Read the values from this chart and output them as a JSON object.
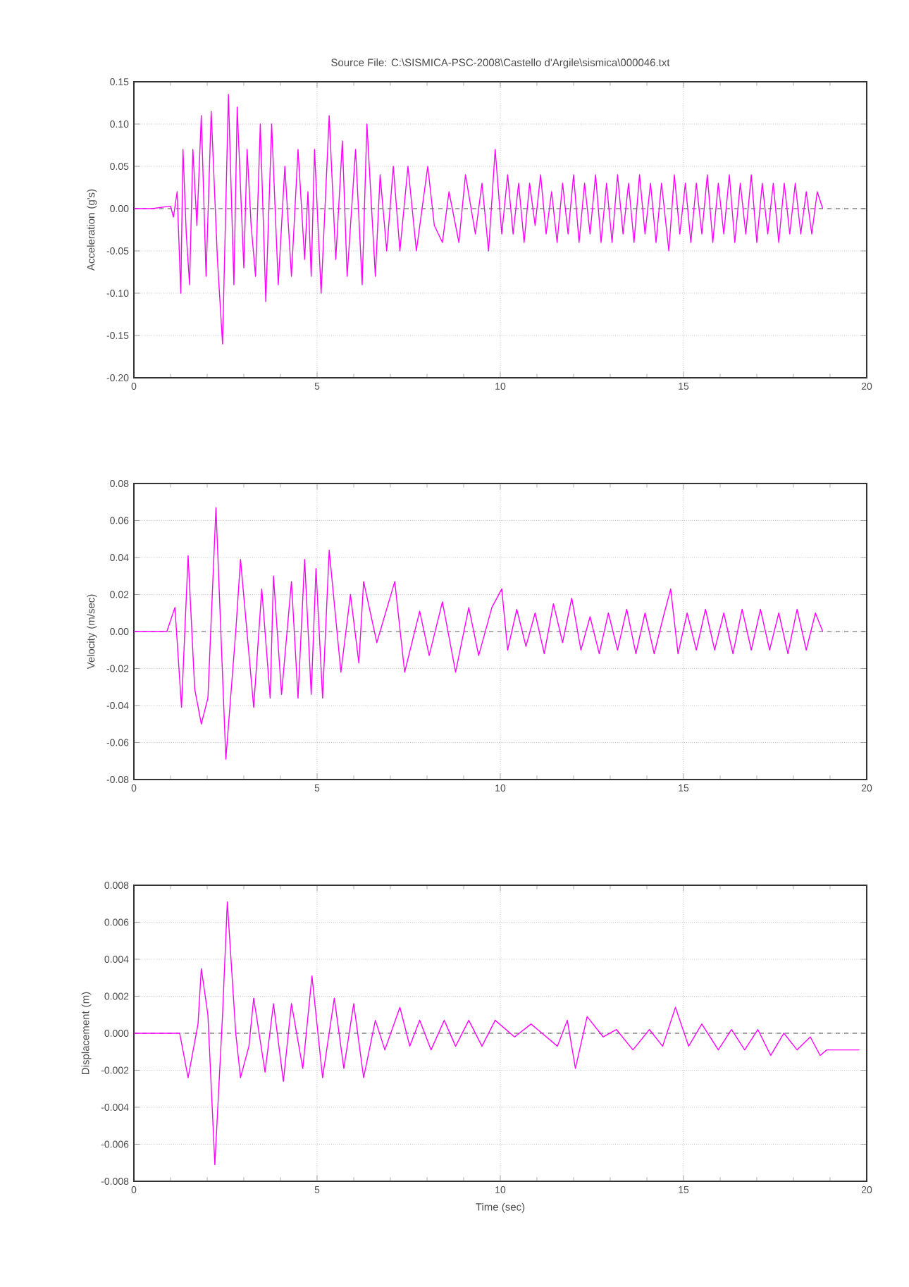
{
  "chart_data": [
    {
      "type": "line",
      "title": "Source File: C:\\SISMICA-PSC-2008\\Castello d'Argile\\sismica\\000046.txt",
      "ylabel": "Acceleration (g's)",
      "xlim": [
        0,
        20
      ],
      "xticks": [
        {
          "value": 0,
          "label": "0"
        },
        {
          "value": 5,
          "label": "5"
        },
        {
          "value": 10,
          "label": "10"
        },
        {
          "value": 15,
          "label": "15"
        },
        {
          "value": 20,
          "label": "20"
        }
      ],
      "ylim": [
        -0.2,
        0.15
      ],
      "yticks": [
        {
          "value": 0.15,
          "label": "0.15"
        },
        {
          "value": 0.1,
          "label": "0.10"
        },
        {
          "value": 0.05,
          "label": "0.05"
        },
        {
          "value": 0,
          "label": "0.00"
        },
        {
          "value": -0.05,
          "label": "-0.05"
        },
        {
          "value": -0.1,
          "label": "-0.10"
        },
        {
          "value": -0.15,
          "label": "-0.15"
        },
        {
          "value": -0.2,
          "label": "-0.20"
        }
      ],
      "grid": true,
      "ref_lines": [
        {
          "axis": "y",
          "value": 0,
          "color": "#505050",
          "line_style": "dashed"
        }
      ],
      "series": [
        {
          "color": "#ff00ff",
          "x": [
            0,
            0.5,
            1.0,
            1.08,
            1.18,
            1.28,
            1.34,
            1.43,
            1.52,
            1.61,
            1.72,
            1.84,
            1.97,
            2.11,
            2.28,
            2.42,
            2.58,
            2.73,
            2.82,
            3.0,
            3.09,
            3.2,
            3.32,
            3.45,
            3.6,
            3.76,
            3.94,
            4.12,
            4.3,
            4.48,
            4.66,
            4.75,
            4.84,
            4.93,
            5.11,
            5.33,
            5.51,
            5.69,
            5.82,
            6.05,
            6.23,
            6.36,
            6.59,
            6.72,
            6.9,
            7.08,
            7.26,
            7.48,
            7.71,
            8.02,
            8.2,
            8.42,
            8.6,
            8.87,
            9.05,
            9.32,
            9.5,
            9.68,
            9.86,
            10.04,
            10.2,
            10.35,
            10.5,
            10.65,
            10.8,
            10.95,
            11.1,
            11.25,
            11.4,
            11.55,
            11.7,
            11.85,
            12.0,
            12.15,
            12.3,
            12.45,
            12.6,
            12.75,
            12.9,
            13.05,
            13.2,
            13.35,
            13.5,
            13.65,
            13.8,
            13.95,
            14.1,
            14.25,
            14.4,
            14.6,
            14.75,
            14.9,
            15.05,
            15.2,
            15.35,
            15.5,
            15.65,
            15.8,
            15.95,
            16.1,
            16.25,
            16.4,
            16.55,
            16.7,
            16.85,
            17.0,
            17.15,
            17.3,
            17.45,
            17.6,
            17.75,
            17.9,
            18.05,
            18.2,
            18.35,
            18.5,
            18.65,
            18.8
          ],
          "values": [
            0,
            0,
            0.003,
            -0.01,
            0.02,
            -0.1,
            0.07,
            -0.03,
            -0.09,
            0.07,
            -0.02,
            0.11,
            -0.08,
            0.115,
            -0.06,
            -0.16,
            0.135,
            -0.09,
            0.12,
            -0.07,
            0.07,
            -0.02,
            -0.08,
            0.1,
            -0.11,
            0.1,
            -0.09,
            0.05,
            -0.08,
            0.07,
            -0.06,
            0.02,
            -0.08,
            0.07,
            -0.1,
            0.11,
            -0.06,
            0.08,
            -0.08,
            0.07,
            -0.09,
            0.1,
            -0.08,
            0.04,
            -0.05,
            0.05,
            -0.05,
            0.05,
            -0.05,
            0.05,
            -0.02,
            -0.04,
            0.02,
            -0.04,
            0.04,
            -0.03,
            0.03,
            -0.05,
            0.07,
            -0.03,
            0.04,
            -0.03,
            0.03,
            -0.04,
            0.03,
            -0.02,
            0.04,
            -0.03,
            0.02,
            -0.04,
            0.03,
            -0.03,
            0.04,
            -0.04,
            0.03,
            -0.03,
            0.04,
            -0.04,
            0.03,
            -0.04,
            0.04,
            -0.03,
            0.03,
            -0.04,
            0.04,
            -0.03,
            0.03,
            -0.04,
            0.03,
            -0.05,
            0.04,
            -0.03,
            0.03,
            -0.04,
            0.03,
            -0.03,
            0.04,
            -0.04,
            0.03,
            -0.03,
            0.04,
            -0.04,
            0.03,
            -0.03,
            0.04,
            -0.04,
            0.03,
            -0.03,
            0.03,
            -0.04,
            0.03,
            -0.03,
            0.03,
            -0.03,
            0.02,
            -0.03,
            0.02,
            0
          ]
        }
      ]
    },
    {
      "type": "line",
      "ylabel": "Velocity (m/sec)",
      "xlim": [
        0,
        20
      ],
      "xticks": [
        {
          "value": 0,
          "label": "0"
        },
        {
          "value": 5,
          "label": "5"
        },
        {
          "value": 10,
          "label": "10"
        },
        {
          "value": 15,
          "label": "15"
        },
        {
          "value": 20,
          "label": "20"
        }
      ],
      "ylim": [
        -0.08,
        0.08
      ],
      "yticks": [
        {
          "value": 0.08,
          "label": "0.08"
        },
        {
          "value": 0.06,
          "label": "0.06"
        },
        {
          "value": 0.04,
          "label": "0.04"
        },
        {
          "value": 0.02,
          "label": "0.02"
        },
        {
          "value": 0,
          "label": "0.00"
        },
        {
          "value": -0.02,
          "label": "-0.02"
        },
        {
          "value": -0.04,
          "label": "-0.04"
        },
        {
          "value": -0.06,
          "label": "-0.06"
        },
        {
          "value": -0.08,
          "label": "-0.08"
        }
      ],
      "grid": true,
      "ref_lines": [
        {
          "axis": "y",
          "value": 0,
          "color": "#505050",
          "line_style": "dashed"
        }
      ],
      "series": [
        {
          "color": "#ff00ff",
          "x": [
            0,
            0.9,
            1.12,
            1.3,
            1.48,
            1.66,
            1.84,
            2.02,
            2.24,
            2.51,
            2.78,
            2.91,
            3.27,
            3.49,
            3.72,
            3.81,
            4.03,
            4.3,
            4.48,
            4.66,
            4.84,
            4.97,
            5.15,
            5.33,
            5.65,
            5.91,
            6.14,
            6.27,
            6.63,
            7.12,
            7.39,
            7.8,
            8.06,
            8.42,
            8.78,
            9.14,
            9.41,
            9.77,
            10.04,
            10.2,
            10.45,
            10.7,
            10.95,
            11.2,
            11.45,
            11.7,
            11.95,
            12.2,
            12.45,
            12.7,
            12.95,
            13.2,
            13.45,
            13.7,
            13.95,
            14.2,
            14.45,
            14.65,
            14.85,
            15.1,
            15.35,
            15.6,
            15.85,
            16.1,
            16.35,
            16.6,
            16.85,
            17.1,
            17.35,
            17.6,
            17.85,
            18.1,
            18.35,
            18.6,
            18.8
          ],
          "values": [
            0,
            0,
            0.013,
            -0.041,
            0.041,
            -0.031,
            -0.05,
            -0.036,
            0.067,
            -0.069,
            0,
            0.039,
            -0.041,
            0.023,
            -0.036,
            0.03,
            -0.034,
            0.027,
            -0.036,
            0.039,
            -0.034,
            0.034,
            -0.036,
            0.044,
            -0.022,
            0.02,
            -0.017,
            0.027,
            -0.006,
            0.027,
            -0.022,
            0.011,
            -0.013,
            0.016,
            -0.022,
            0.013,
            -0.013,
            0.013,
            0.023,
            -0.01,
            0.012,
            -0.008,
            0.01,
            -0.012,
            0.015,
            -0.006,
            0.018,
            -0.01,
            0.008,
            -0.012,
            0.01,
            -0.01,
            0.012,
            -0.012,
            0.01,
            -0.012,
            0.008,
            0.023,
            -0.012,
            0.01,
            -0.01,
            0.012,
            -0.01,
            0.01,
            -0.012,
            0.012,
            -0.01,
            0.012,
            -0.01,
            0.01,
            -0.012,
            0.012,
            -0.01,
            0.01,
            0
          ]
        }
      ]
    },
    {
      "type": "line",
      "ylabel": "Displacement (m)",
      "xlabel": "Time (sec)",
      "xlim": [
        0,
        20
      ],
      "xticks": [
        {
          "value": 0,
          "label": "0"
        },
        {
          "value": 5,
          "label": "5"
        },
        {
          "value": 10,
          "label": "10"
        },
        {
          "value": 15,
          "label": "15"
        },
        {
          "value": 20,
          "label": "20"
        }
      ],
      "ylim": [
        -0.008,
        0.008
      ],
      "yticks": [
        {
          "value": 0.008,
          "label": "0.008"
        },
        {
          "value": 0.006,
          "label": "0.006"
        },
        {
          "value": 0.004,
          "label": "0.004"
        },
        {
          "value": 0.002,
          "label": "0.002"
        },
        {
          "value": 0,
          "label": "0.000"
        },
        {
          "value": -0.002,
          "label": "-0.002"
        },
        {
          "value": -0.004,
          "label": "-0.004"
        },
        {
          "value": -0.006,
          "label": "-0.006"
        },
        {
          "value": -0.008,
          "label": "-0.008"
        }
      ],
      "grid": true,
      "ref_lines": [
        {
          "axis": "y",
          "value": 0,
          "color": "#505050",
          "line_style": "dashed"
        }
      ],
      "series": [
        {
          "color": "#ff00ff",
          "x": [
            0,
            1.25,
            1.48,
            1.75,
            1.84,
            2.02,
            2.21,
            2.42,
            2.55,
            2.78,
            2.91,
            3.14,
            3.27,
            3.58,
            3.81,
            4.08,
            4.3,
            4.61,
            4.86,
            5.15,
            5.47,
            5.73,
            6.0,
            6.27,
            6.59,
            6.85,
            7.26,
            7.53,
            7.8,
            8.11,
            8.47,
            8.78,
            9.14,
            9.5,
            9.86,
            10.39,
            10.84,
            11.56,
            11.83,
            12.05,
            12.37,
            12.81,
            13.17,
            13.62,
            14.07,
            14.43,
            14.78,
            15.14,
            15.5,
            15.95,
            16.31,
            16.67,
            17.03,
            17.38,
            17.74,
            18.1,
            18.46,
            18.73,
            18.91,
            19.8
          ],
          "values": [
            0,
            0,
            -0.0024,
            0.0005,
            0.0035,
            0.001,
            -0.0071,
            0.001,
            0.0071,
            0,
            -0.0024,
            -0.0007,
            0.0019,
            -0.0021,
            0.0016,
            -0.0026,
            0.0016,
            -0.0019,
            0.0031,
            -0.0024,
            0.0019,
            -0.0019,
            0.0016,
            -0.0024,
            0.0007,
            -0.0009,
            0.0014,
            -0.0007,
            0.0007,
            -0.0009,
            0.0007,
            -0.0007,
            0.0007,
            -0.0007,
            0.0007,
            -0.0002,
            0.0005,
            -0.0007,
            0.0007,
            -0.0019,
            0.0009,
            -0.0002,
            0.0002,
            -0.0009,
            0.0002,
            -0.0007,
            0.0014,
            -0.0007,
            0.0005,
            -0.0009,
            0.0002,
            -0.0009,
            0.0002,
            -0.0012,
            0,
            -0.0009,
            -0.0002,
            -0.0012,
            -0.0009,
            -0.0009
          ]
        }
      ]
    }
  ]
}
